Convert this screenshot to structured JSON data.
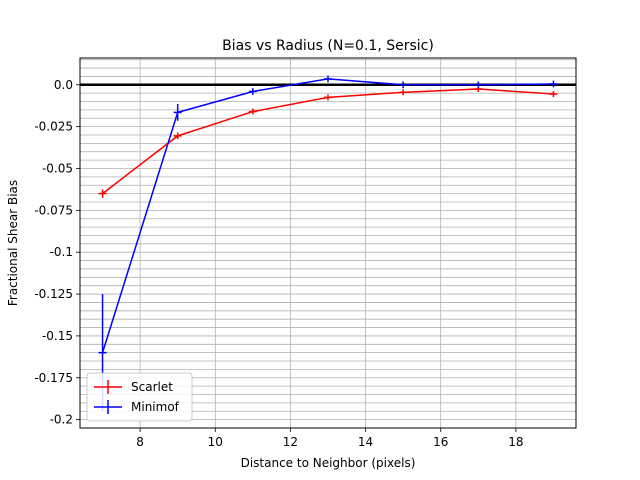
{
  "chart_data": {
    "type": "line",
    "title": "Bias vs Radius (N=0.1, Sersic)",
    "xlabel": "Distance to Neighbor (pixels)",
    "ylabel": "Fractional Shear Bias",
    "xlim": [
      6.4,
      19.6
    ],
    "ylim": [
      -0.205,
      0.016
    ],
    "x_ticks": [
      8,
      10,
      12,
      14,
      16,
      18
    ],
    "x_tick_labels": [
      "8",
      "10",
      "12",
      "14",
      "16",
      "18"
    ],
    "y_ticks": [
      0.0,
      -0.025,
      -0.05,
      -0.075,
      -0.1,
      -0.125,
      -0.15,
      -0.175,
      -0.2
    ],
    "y_tick_labels": [
      "0.0",
      "-0.025",
      "-0.05",
      "-0.075",
      "-0.1",
      "-0.125",
      "-0.15",
      "-0.175",
      "-0.2"
    ],
    "x_grid": [
      8,
      10,
      12,
      14,
      16,
      18
    ],
    "y_minor_grid_step": 0.005,
    "reference_line_y": 0.0,
    "legend_position": "lower-left",
    "series": [
      {
        "name": "Scarlet",
        "color": "#ff0000",
        "x": [
          7,
          9,
          11,
          13,
          15,
          17,
          19
        ],
        "y": [
          -0.065,
          -0.0305,
          -0.016,
          -0.0075,
          -0.0045,
          -0.0025,
          -0.0055
        ],
        "yerr": [
          0.0025,
          0.002,
          0.0018,
          0.0018,
          0.0018,
          0.0018,
          0.0018
        ]
      },
      {
        "name": "Minimof",
        "color": "#0000ff",
        "x": [
          7,
          9,
          11,
          13,
          15,
          17,
          19
        ],
        "y": [
          -0.16,
          -0.0165,
          -0.004,
          0.0035,
          0.0,
          0.0,
          0.0005
        ],
        "yerr": [
          0.035,
          0.005,
          0.002,
          0.002,
          0.002,
          0.002,
          0.002
        ]
      }
    ]
  }
}
